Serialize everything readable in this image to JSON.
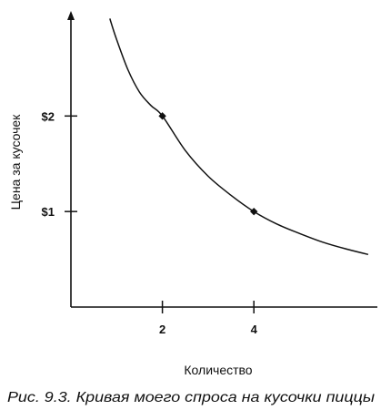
{
  "chart_data": {
    "type": "line",
    "title": "",
    "caption": "Рис. 9.3. Кривая моего спроса на кусочки пиццы",
    "xlabel": "Количество",
    "ylabel": "Цена за кусочек",
    "x_ticks": [
      {
        "value": 2,
        "label": "2"
      },
      {
        "value": 4,
        "label": "4"
      }
    ],
    "y_ticks": [
      {
        "value": 1,
        "label": "$1"
      },
      {
        "value": 2,
        "label": "$2"
      }
    ],
    "xlim": [
      0,
      6.7
    ],
    "ylim": [
      0,
      3.1
    ],
    "grid": false,
    "legend": "none",
    "series": [
      {
        "x": [
          0.85,
          1.0,
          1.25,
          1.5,
          1.75,
          2.0,
          2.5,
          3.0,
          3.5,
          4.0,
          4.5,
          5.0,
          5.5,
          6.0,
          6.5
        ],
        "y": [
          3.02,
          2.8,
          2.48,
          2.25,
          2.11,
          2.0,
          1.64,
          1.37,
          1.17,
          1.0,
          0.87,
          0.77,
          0.68,
          0.61,
          0.55
        ]
      }
    ],
    "points": [
      {
        "x": 2,
        "y": 2
      },
      {
        "x": 4,
        "y": 1
      }
    ],
    "colors": {
      "ink": "#111111"
    }
  }
}
